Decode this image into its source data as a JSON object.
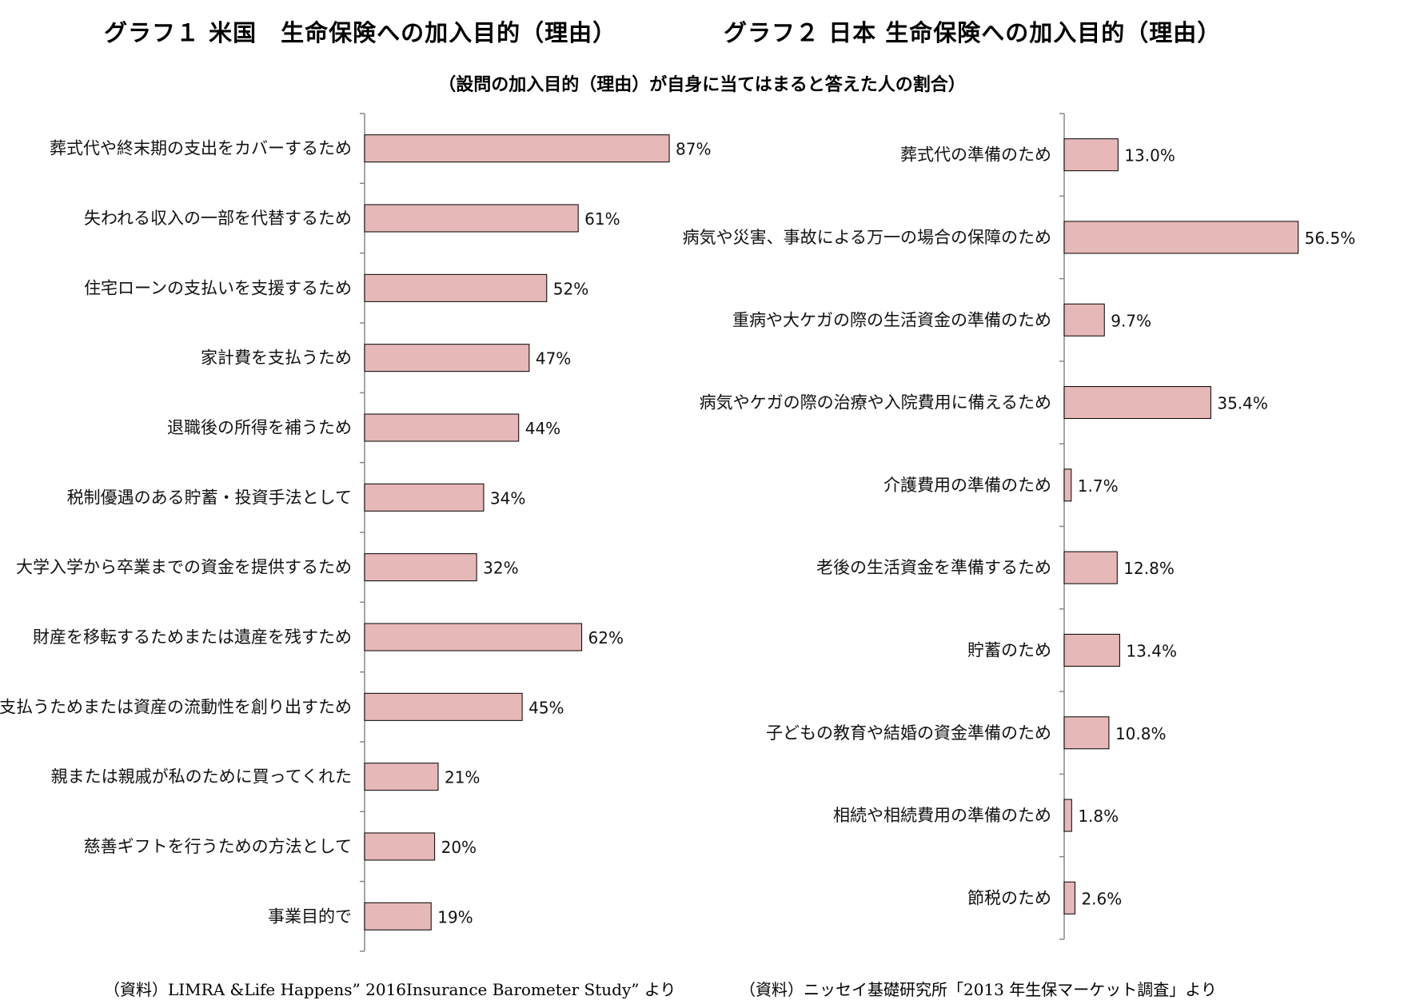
{
  "titles": {
    "graph1": "グラフ１ 米国　生命保険への加入目的（理由）",
    "graph2": "グラフ２ 日本 生命保険への加入目的（理由）",
    "subtitle": "（設問の加入目的（理由）が自身に当てはまると答えた人の割合）"
  },
  "sources": {
    "graph1": "（資料）LIMRA &Life Happens” 2016Insurance Barometer Study” より",
    "graph2": "（資料）ニッセイ基礎研究所「2013 年生保マーケット調査」より"
  },
  "colors": {
    "bar_fill": "#e6b8b7",
    "bar_stroke": "#000000",
    "axis": "#888888"
  },
  "chart_data": [
    {
      "type": "bar",
      "orientation": "horizontal",
      "title": "グラフ１ 米国　生命保険への加入目的（理由）",
      "categories": [
        "葬式代や終末期の支出をカバーするため",
        "失われる収入の一部を代替するため",
        "住宅ローンの支払いを支援するため",
        "家計費を支払うため",
        "退職後の所得を補うため",
        "税制優遇のある貯蓄・投資手法として",
        "大学入学から卒業までの資金を提供するため",
        "財産を移転するためまたは遺産を残すため",
        "資産税を支払うためまたは資産の流動性を創り出すため",
        "親または親戚が私のために買ってくれた",
        "慈善ギフトを行うための方法として",
        "事業目的で"
      ],
      "values": [
        87,
        61,
        52,
        47,
        44,
        34,
        32,
        62,
        45,
        21,
        20,
        19
      ],
      "value_labels": [
        "87%",
        "61%",
        "52%",
        "47%",
        "44%",
        "34%",
        "32%",
        "62%",
        "45%",
        "21%",
        "20%",
        "19%"
      ],
      "xlim": [
        0,
        100
      ],
      "grid": false
    },
    {
      "type": "bar",
      "orientation": "horizontal",
      "title": "グラフ２ 日本 生命保険への加入目的（理由）",
      "categories": [
        "葬式代の準備のため",
        "病気や災害、事故による万一の場合の保障のため",
        "重病や大ケガの際の生活資金の準備のため",
        "病気やケガの際の治療や入院費用に備えるため",
        "介護費用の準備のため",
        "老後の生活資金を準備するため",
        "貯蓄のため",
        "子どもの教育や結婚の資金準備のため",
        "相続や相続費用の準備のため",
        "節税のため"
      ],
      "values": [
        13.0,
        56.5,
        9.7,
        35.4,
        1.7,
        12.8,
        13.4,
        10.8,
        1.8,
        2.6
      ],
      "value_labels": [
        "13.0%",
        "56.5%",
        "9.7%",
        "35.4%",
        "1.7%",
        "12.8%",
        "13.4%",
        "10.8%",
        "1.8%",
        "2.6%"
      ],
      "xlim": [
        0,
        100
      ],
      "grid": false
    }
  ]
}
